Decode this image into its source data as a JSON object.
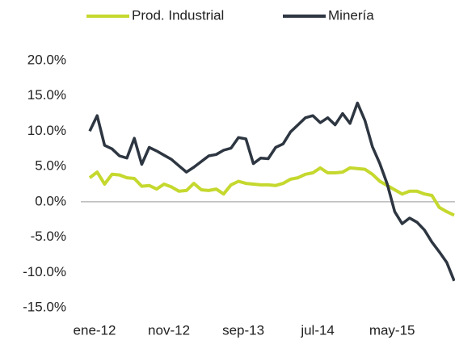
{
  "chart_data": {
    "type": "line",
    "categories": [
      "ene-12",
      null,
      null,
      null,
      null,
      null,
      null,
      null,
      null,
      null,
      "nov-12",
      null,
      null,
      null,
      null,
      null,
      null,
      null,
      null,
      null,
      "sep-13",
      null,
      null,
      null,
      null,
      null,
      null,
      null,
      null,
      null,
      "jul-14",
      null,
      null,
      null,
      null,
      null,
      null,
      null,
      null,
      null,
      "may-15",
      null,
      null,
      null,
      null,
      null,
      null,
      null,
      null,
      null
    ],
    "series": [
      {
        "name": "Prod. Industrial",
        "color": "#c5d82e",
        "values": [
          3.4,
          4.2,
          2.5,
          3.9,
          3.8,
          3.4,
          3.3,
          2.2,
          2.3,
          1.8,
          2.5,
          2.1,
          1.5,
          1.6,
          2.6,
          1.7,
          1.6,
          1.8,
          1.1,
          2.4,
          2.9,
          2.6,
          2.5,
          2.4,
          2.4,
          2.3,
          2.6,
          3.2,
          3.4,
          3.9,
          4.1,
          4.8,
          4.1,
          4.1,
          4.2,
          4.8,
          4.7,
          4.6,
          3.9,
          2.9,
          2.3,
          1.7,
          1.1,
          1.5,
          1.5,
          1.1,
          0.9,
          -0.8,
          -1.4,
          -1.9
        ]
      },
      {
        "name": "Minería",
        "color": "#2d3641",
        "values": [
          10.0,
          12.2,
          8.0,
          7.5,
          6.5,
          6.2,
          9.0,
          5.3,
          7.7,
          7.2,
          6.6,
          6.0,
          5.1,
          4.2,
          4.9,
          5.7,
          6.5,
          6.7,
          7.3,
          7.6,
          9.1,
          8.9,
          5.4,
          6.2,
          6.1,
          7.7,
          8.2,
          9.9,
          10.9,
          11.9,
          12.2,
          11.2,
          11.9,
          10.9,
          12.5,
          11.1,
          14.0,
          11.5,
          7.8,
          5.4,
          2.5,
          -1.4,
          -3.1,
          -2.3,
          -2.9,
          -4.0,
          -5.7,
          -7.1,
          -8.6,
          -11.2
        ]
      }
    ],
    "ylim": [
      -15,
      20
    ],
    "yticks": [
      {
        "value": 20,
        "label": "20.0%"
      },
      {
        "value": 15,
        "label": "15.0%"
      },
      {
        "value": 10,
        "label": "10.0%"
      },
      {
        "value": 5,
        "label": "5.0%"
      },
      {
        "value": 0,
        "label": "0.0%"
      },
      {
        "value": -5,
        "label": "-5.0%"
      },
      {
        "value": -10,
        "label": "-10.0%"
      },
      {
        "value": -15,
        "label": "-15.0%"
      }
    ],
    "legend": "top"
  }
}
